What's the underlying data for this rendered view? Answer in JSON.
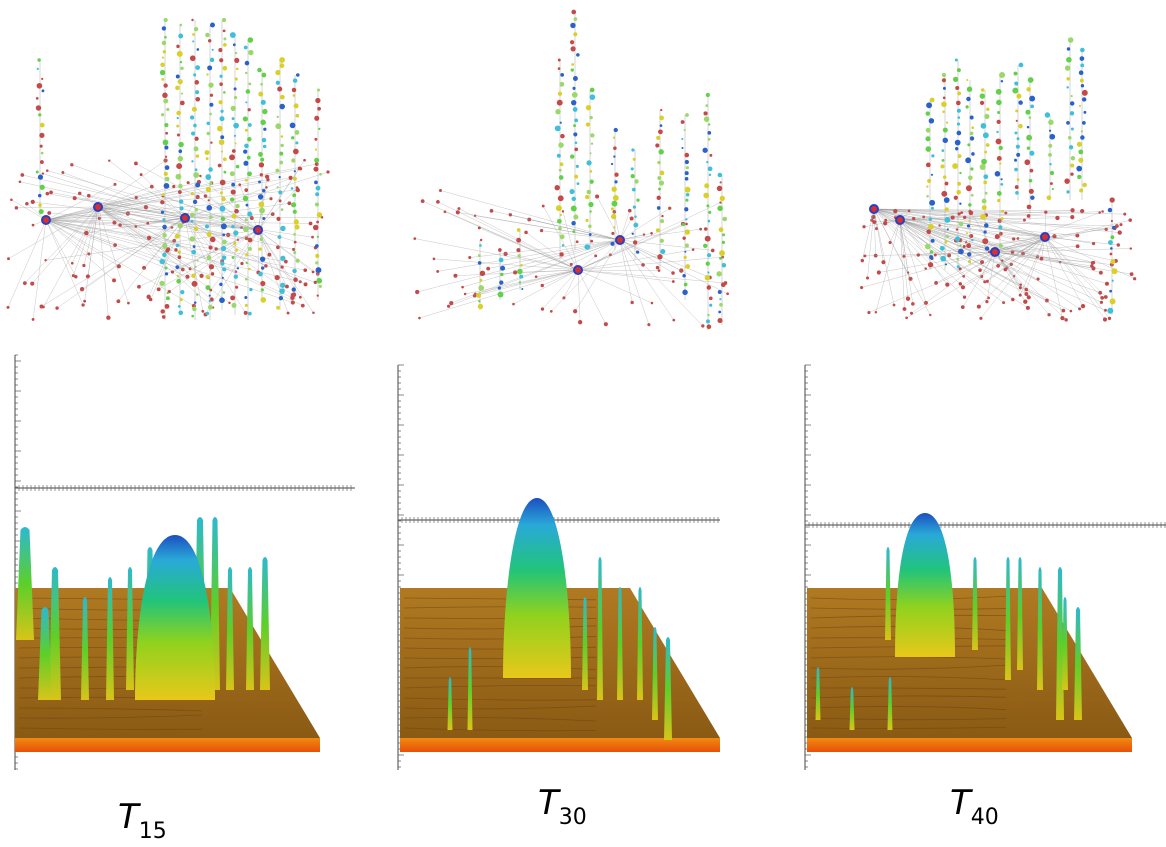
{
  "panels": [
    {
      "label": "T",
      "subscript": "15"
    },
    {
      "label": "T",
      "subscript": "30"
    },
    {
      "label": "T",
      "subscript": "40"
    }
  ]
}
